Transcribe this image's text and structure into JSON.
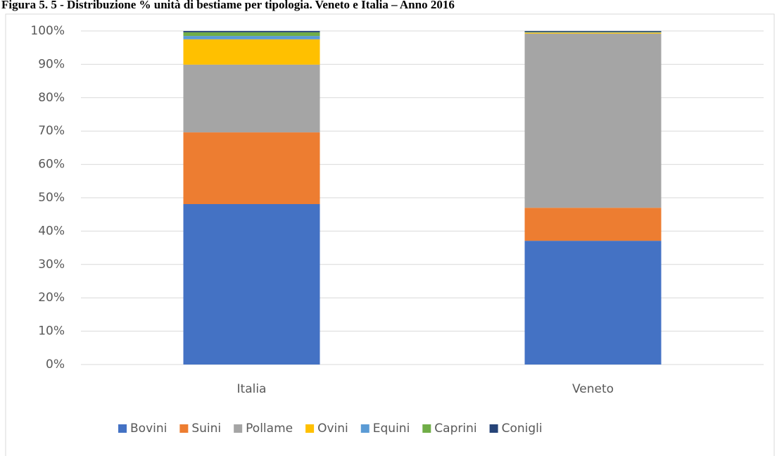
{
  "chart_data": {
    "type": "stacked_bar",
    "title": "Figura 5. 5 - Distribuzione % unità di bestiame per tipologia. Veneto e Italia – Anno 2016",
    "categories": [
      "Italia",
      "Veneto"
    ],
    "series": [
      {
        "name": "Bovini",
        "color": "#4472c4",
        "values": [
          48.1,
          37.1
        ]
      },
      {
        "name": "Suini",
        "color": "#ed7d31",
        "values": [
          21.5,
          9.9
        ]
      },
      {
        "name": "Pollame",
        "color": "#a5a5a5",
        "values": [
          20.3,
          52.2
        ]
      },
      {
        "name": "Ovini",
        "color": "#ffc000",
        "values": [
          7.6,
          0.3
        ]
      },
      {
        "name": "Equini",
        "color": "#5b9bd5",
        "values": [
          1.0,
          0.1
        ]
      },
      {
        "name": "Caprini",
        "color": "#70ad47",
        "values": [
          1.1,
          0.1
        ]
      },
      {
        "name": "Conigli",
        "color": "#264478",
        "values": [
          0.4,
          0.3
        ]
      }
    ],
    "ylim": [
      0,
      100
    ],
    "yticks": [
      {
        "value": 0,
        "label": "0%"
      },
      {
        "value": 10,
        "label": "10%"
      },
      {
        "value": 20,
        "label": "20%"
      },
      {
        "value": 30,
        "label": "30%"
      },
      {
        "value": 40,
        "label": "40%"
      },
      {
        "value": 50,
        "label": "50%"
      },
      {
        "value": 60,
        "label": "60%"
      },
      {
        "value": 70,
        "label": "70%"
      },
      {
        "value": 80,
        "label": "80%"
      },
      {
        "value": 90,
        "label": "90%"
      },
      {
        "value": 100,
        "label": "100%"
      }
    ],
    "grid": true,
    "legend": "bottom"
  }
}
